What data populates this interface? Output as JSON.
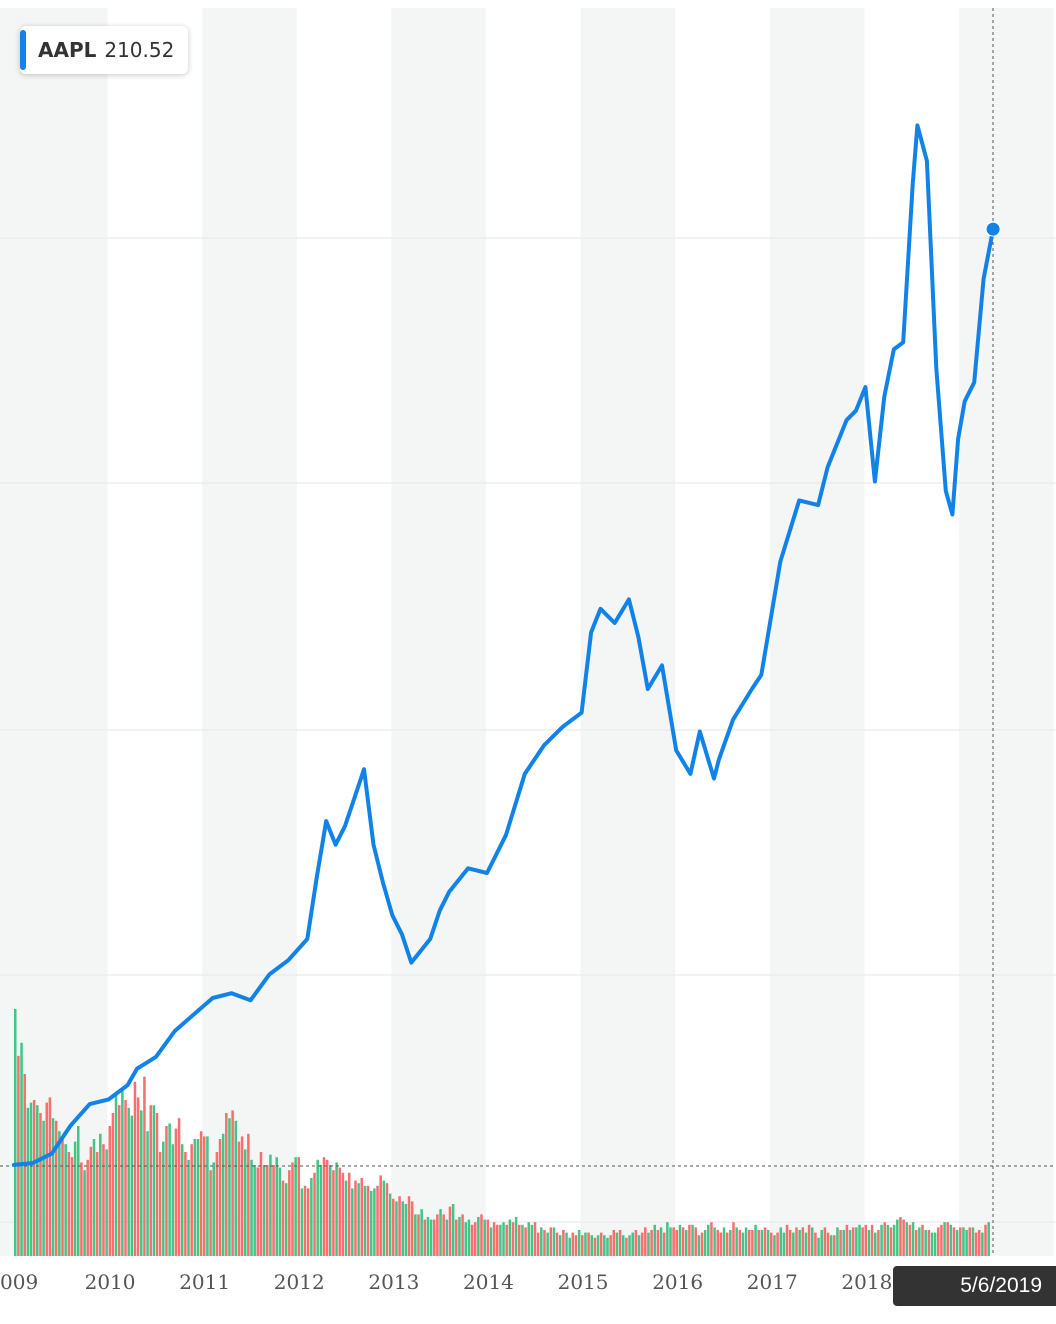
{
  "legend": {
    "ticker": "AAPL",
    "value": "210.52",
    "color": "#1183e8"
  },
  "crosshair": {
    "date_label": "5/6/2019"
  },
  "chart_data": {
    "type": "line",
    "title": "",
    "xlabel": "",
    "ylabel": "",
    "x_ticks": [
      "009",
      "2010",
      "2011",
      "2012",
      "2013",
      "2014",
      "2015",
      "2016",
      "2017",
      "2018"
    ],
    "x_range": [
      2008.9,
      2019.9
    ],
    "y_range": [
      0,
      240
    ],
    "grid": true,
    "legend_position": "top-left",
    "colors": {
      "price": "#1183e8",
      "volume_up": "#44c487",
      "volume_down": "#fa6e6e",
      "band": "#f4f5f5"
    },
    "series": [
      {
        "name": "AAPL",
        "x": [
          2009.0,
          2009.2,
          2009.4,
          2009.6,
          2009.8,
          2010.0,
          2010.2,
          2010.3,
          2010.5,
          2010.7,
          2010.9,
          2011.1,
          2011.3,
          2011.5,
          2011.7,
          2011.9,
          2012.1,
          2012.2,
          2012.3,
          2012.4,
          2012.5,
          2012.6,
          2012.7,
          2012.8,
          2012.9,
          2013.0,
          2013.1,
          2013.2,
          2013.4,
          2013.5,
          2013.6,
          2013.8,
          2014.0,
          2014.2,
          2014.4,
          2014.6,
          2014.8,
          2015.0,
          2015.1,
          2015.2,
          2015.35,
          2015.5,
          2015.6,
          2015.7,
          2015.85,
          2016.0,
          2016.15,
          2016.25,
          2016.4,
          2016.45,
          2016.6,
          2016.8,
          2016.9,
          2017.1,
          2017.3,
          2017.5,
          2017.6,
          2017.8,
          2017.9,
          2018.0,
          2018.1,
          2018.2,
          2018.3,
          2018.4,
          2018.5,
          2018.55,
          2018.65,
          2018.75,
          2018.85,
          2018.92,
          2018.98,
          2019.05,
          2019.15,
          2019.25,
          2019.35
        ],
        "values": [
          12.1,
          12.5,
          14.5,
          20.5,
          25.0,
          26.0,
          29.0,
          32.5,
          35.0,
          40.5,
          44.0,
          47.5,
          48.5,
          47.0,
          52.5,
          55.5,
          60.0,
          73.0,
          85.0,
          80.0,
          84.0,
          90.0,
          96.0,
          80.0,
          72.0,
          65.0,
          61.0,
          55.0,
          60.0,
          66.0,
          70.0,
          75.0,
          74.0,
          82.0,
          95.0,
          101.0,
          105.0,
          108.0,
          125.0,
          130.0,
          127.0,
          132.0,
          124.0,
          113.0,
          118.0,
          100.0,
          95.0,
          104.0,
          94.0,
          98.0,
          106.5,
          113.0,
          116.0,
          140.0,
          153.0,
          152.0,
          160.0,
          170.0,
          172.0,
          177.0,
          157.0,
          175.0,
          185.0,
          186.5,
          220.0,
          232.5,
          225.0,
          181.0,
          155.0,
          150.0,
          166.0,
          174.0,
          178.0,
          200.0,
          210.5
        ]
      }
    ],
    "volume_bars": {
      "x_start": 2009.0,
      "x_step": 0.0333,
      "y_range": [
        0,
        100
      ],
      "values": [
        95,
        77,
        82,
        70,
        57,
        59,
        60,
        58,
        55,
        52,
        59,
        61,
        53,
        52,
        48,
        45,
        43,
        40,
        38,
        44,
        50,
        36,
        33,
        37,
        42,
        45,
        40,
        47,
        43,
        41,
        50,
        55,
        62,
        58,
        64,
        60,
        57,
        54,
        67,
        61,
        56,
        69,
        48,
        58,
        58,
        55,
        40,
        44,
        50,
        51,
        43,
        49,
        53,
        43,
        40,
        37,
        43,
        45,
        45,
        48,
        46,
        46,
        33,
        36,
        40,
        45,
        47,
        55,
        53,
        56,
        52,
        44,
        46,
        41,
        47,
        37,
        35,
        34,
        40,
        35,
        35,
        39,
        35,
        38,
        34,
        29,
        28,
        33,
        36,
        38,
        38,
        26,
        27,
        26,
        30,
        32,
        37,
        35,
        38,
        37,
        35,
        33,
        36,
        34,
        32,
        29,
        32,
        26,
        29,
        28,
        30,
        27,
        27,
        25,
        26,
        27,
        31,
        29,
        28,
        24,
        22,
        21,
        23,
        21,
        20,
        23,
        21,
        16,
        16,
        18,
        14,
        15,
        14,
        14,
        16,
        18,
        16,
        14,
        19,
        20,
        14,
        15,
        16,
        13,
        14,
        12,
        13,
        15,
        16,
        14,
        14,
        11,
        13,
        12,
        12,
        13,
        12,
        14,
        13,
        15,
        12,
        12,
        11,
        13,
        12,
        13,
        9,
        11,
        10,
        9,
        11,
        11,
        9,
        8,
        10,
        9,
        7,
        9,
        8,
        10,
        8,
        9,
        9,
        8,
        7,
        8,
        9,
        8,
        7,
        8,
        10,
        9,
        10,
        8,
        7,
        8,
        9,
        10,
        8,
        9,
        11,
        9,
        10,
        12,
        10,
        11,
        9,
        13,
        11,
        11,
        10,
        12,
        11,
        10,
        12,
        12,
        11,
        8,
        9,
        10,
        12,
        13,
        11,
        10,
        9,
        11,
        9,
        10,
        13,
        11,
        10,
        9,
        11,
        10,
        10,
        12,
        10,
        10,
        11,
        10,
        9,
        8,
        9,
        11,
        9,
        12,
        10,
        9,
        11,
        10,
        11,
        9,
        12,
        11,
        9,
        7,
        10,
        11,
        9,
        8,
        8,
        11,
        10,
        10,
        12,
        10,
        11,
        11,
        12,
        11,
        12,
        10,
        12,
        9,
        10,
        12,
        13,
        12,
        11,
        12,
        14,
        15,
        14,
        13,
        12,
        13,
        10,
        11,
        12,
        10,
        10,
        9,
        9,
        11,
        12,
        13,
        13,
        12,
        11,
        10,
        11,
        11,
        10,
        11,
        11,
        9,
        10,
        9,
        12,
        13,
        14,
        15,
        14,
        13,
        12,
        11,
        12,
        14,
        13,
        12,
        13,
        12,
        12,
        11,
        14,
        13,
        12
      ],
      "colors": [
        "up",
        "down",
        "up",
        "down",
        "up",
        "up",
        "down",
        "up",
        "down",
        "up",
        "down",
        "down",
        "up",
        "down",
        "up",
        "down",
        "up",
        "down",
        "down",
        "up",
        "up",
        "down",
        "up",
        "down",
        "down",
        "up",
        "down",
        "up",
        "down",
        "up",
        "down",
        "down",
        "up",
        "down",
        "up",
        "down",
        "up",
        "up",
        "down",
        "down",
        "up",
        "down",
        "up",
        "down",
        "up",
        "down",
        "down",
        "up",
        "down",
        "up",
        "up",
        "down",
        "down",
        "up",
        "down",
        "up",
        "down",
        "up",
        "up",
        "down",
        "down",
        "up",
        "down",
        "up",
        "down",
        "down",
        "up",
        "down",
        "up",
        "down",
        "up",
        "down",
        "down",
        "up",
        "down",
        "up",
        "up",
        "down",
        "down",
        "up",
        "down",
        "up",
        "down",
        "up",
        "up",
        "down",
        "up",
        "down",
        "down",
        "up",
        "down",
        "up",
        "down",
        "down",
        "up",
        "down",
        "up",
        "up",
        "down",
        "down",
        "up",
        "down",
        "up",
        "down",
        "down",
        "up",
        "down",
        "up",
        "down",
        "up",
        "down",
        "up",
        "down",
        "up",
        "up",
        "down",
        "down",
        "up",
        "down",
        "up",
        "down",
        "up",
        "down",
        "up",
        "up",
        "down",
        "down",
        "up",
        "down",
        "up",
        "down",
        "up",
        "up",
        "down",
        "down",
        "up",
        "down",
        "up",
        "down",
        "up",
        "down",
        "up",
        "down",
        "up",
        "up",
        "down",
        "down",
        "up",
        "down",
        "up",
        "down",
        "up",
        "down",
        "down",
        "up",
        "up",
        "down",
        "up",
        "down",
        "up",
        "down",
        "up",
        "down",
        "up",
        "up",
        "down",
        "down",
        "up",
        "down",
        "up",
        "down",
        "up",
        "down",
        "up",
        "down",
        "up",
        "up",
        "down",
        "down",
        "up",
        "down",
        "up",
        "down",
        "up",
        "down",
        "up",
        "down",
        "up",
        "up",
        "down",
        "down",
        "up",
        "down",
        "up",
        "down",
        "up",
        "up",
        "down",
        "up",
        "down",
        "down",
        "up",
        "down",
        "up",
        "down",
        "up",
        "down",
        "up",
        "up",
        "down",
        "down",
        "up",
        "down",
        "up",
        "down",
        "up",
        "down",
        "up",
        "down",
        "up",
        "up",
        "down",
        "up",
        "down",
        "down",
        "up",
        "down",
        "up",
        "down",
        "up",
        "down",
        "up",
        "up",
        "down",
        "down",
        "up",
        "down",
        "up",
        "down",
        "up",
        "down",
        "up",
        "down",
        "up",
        "up",
        "down",
        "down",
        "up",
        "down",
        "up",
        "down",
        "up",
        "down",
        "up",
        "down",
        "up",
        "up",
        "down",
        "down",
        "up",
        "down",
        "up",
        "down",
        "up",
        "down",
        "up",
        "down",
        "up",
        "up",
        "down",
        "down",
        "up",
        "down",
        "up",
        "down",
        "up",
        "down",
        "up",
        "down",
        "up",
        "up",
        "down",
        "down",
        "up",
        "down",
        "up",
        "down",
        "up",
        "down",
        "up",
        "down",
        "up",
        "up",
        "down",
        "down",
        "up",
        "down",
        "up",
        "down",
        "up",
        "down",
        "up",
        "up",
        "down",
        "up",
        "down",
        "down",
        "up",
        "down",
        "up",
        "down",
        "up",
        "up"
      ]
    }
  }
}
